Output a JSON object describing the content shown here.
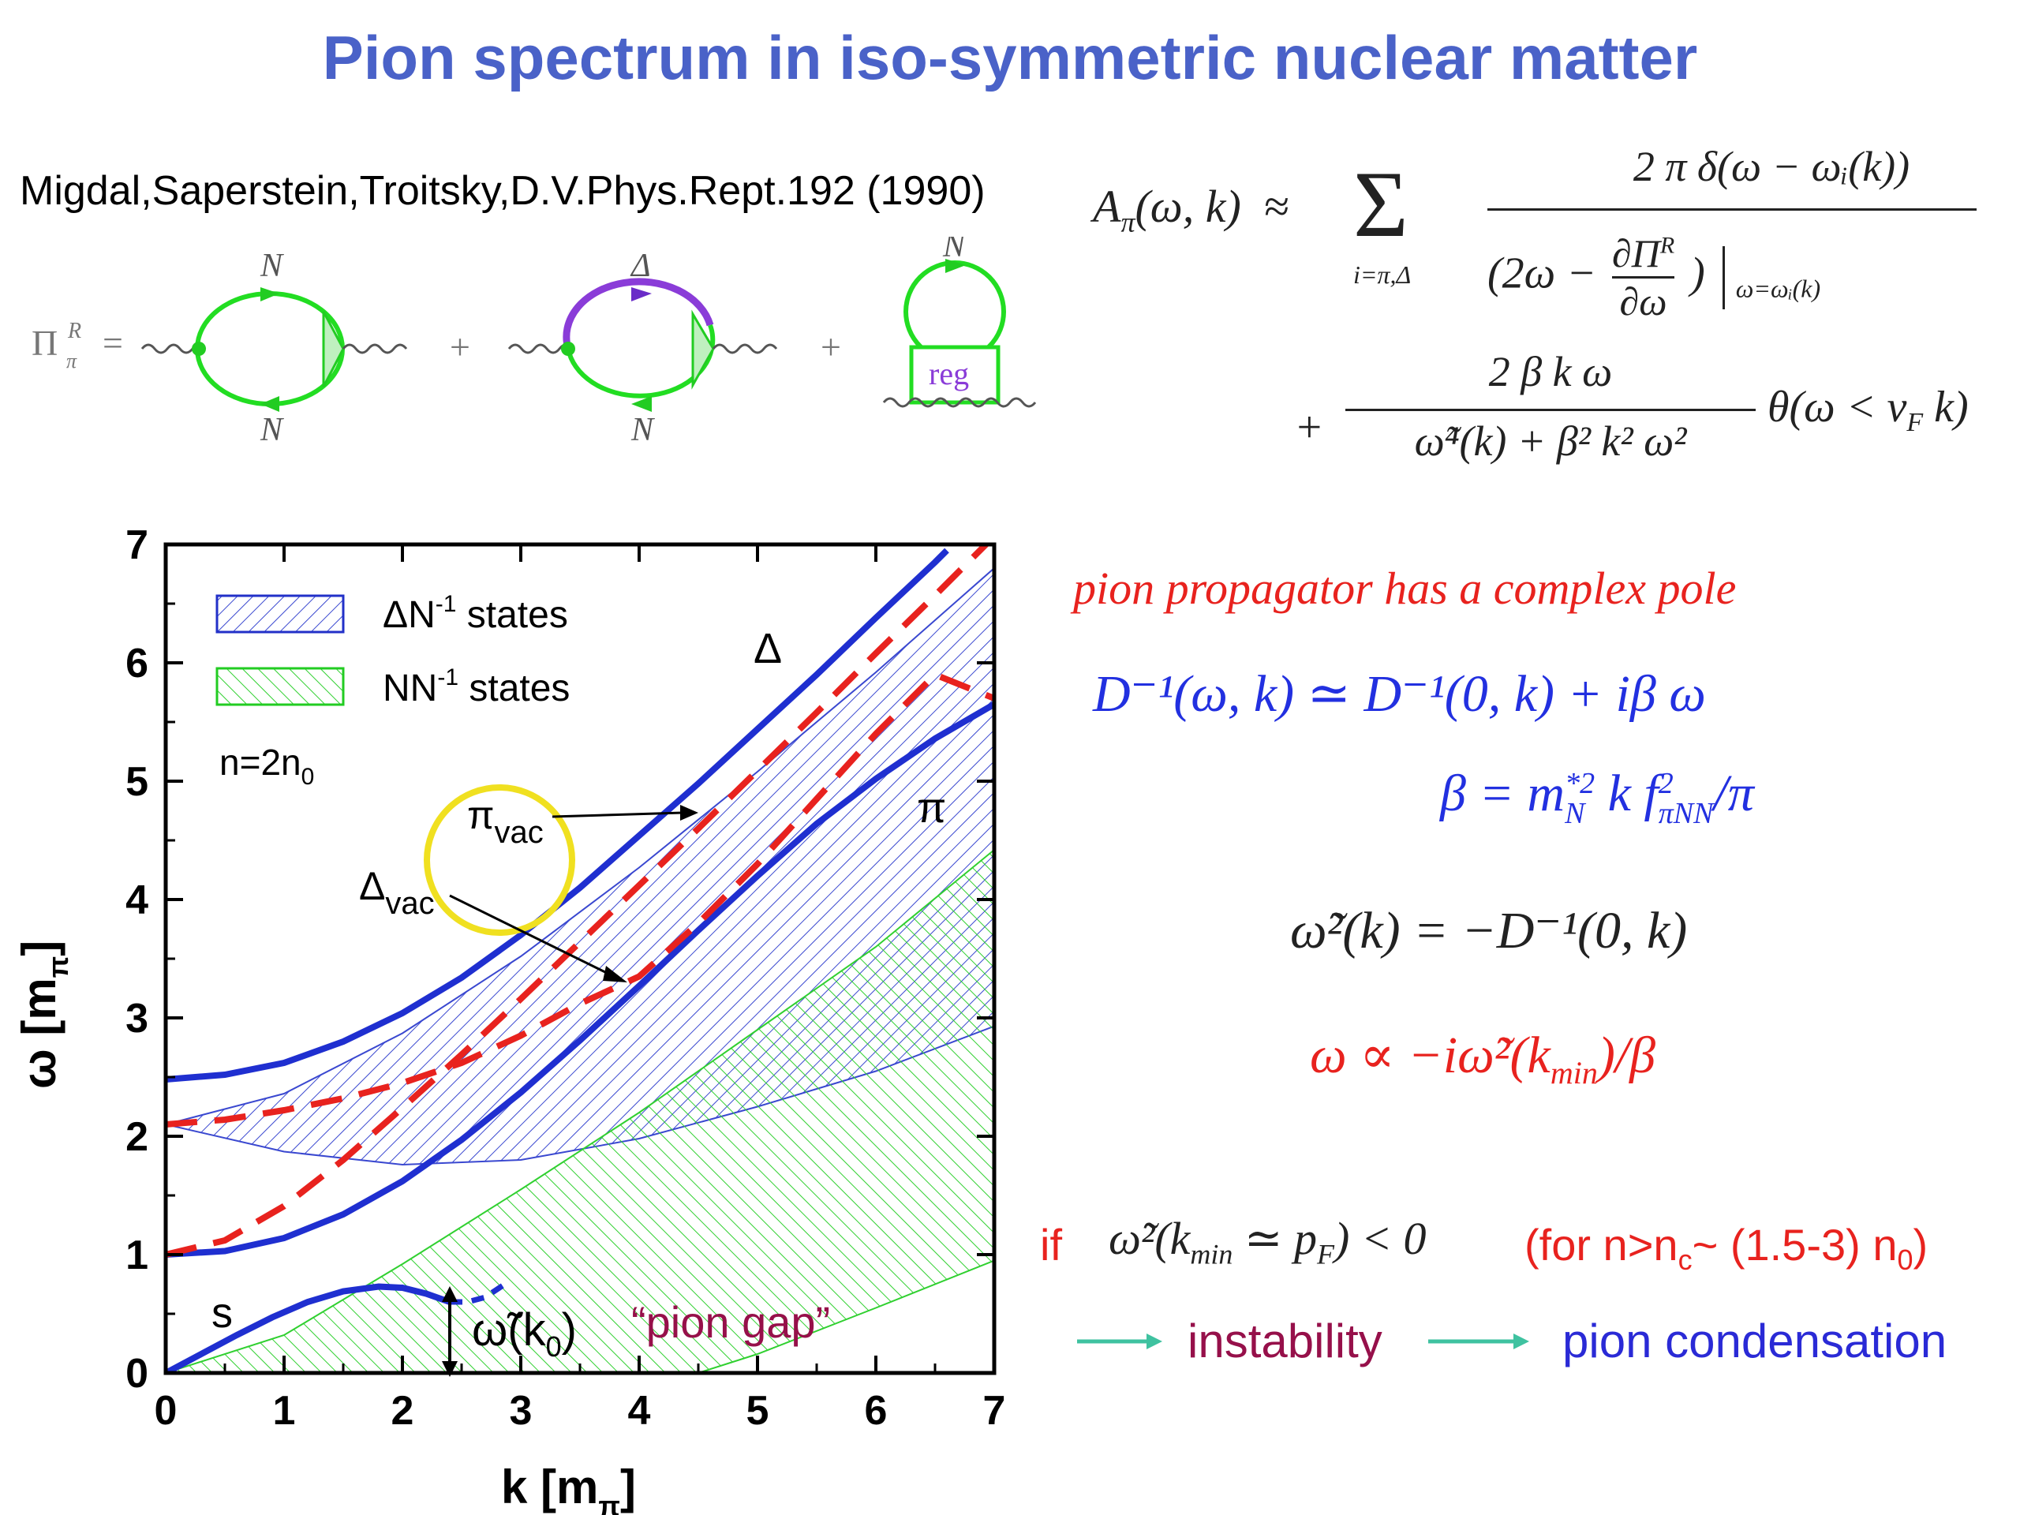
{
  "slide": {
    "title": "Pion spectrum in iso-symmetric nuclear matter",
    "reference": "Migdal,Saperstein,Troitsky,D.V.Phys.Rept.192 (1990)"
  },
  "diagram": {
    "lhs": "Π",
    "lhs_sup": "R",
    "lhs_sub": "π",
    "equals": "=",
    "plus": "+",
    "loop1_top": "N",
    "loop1_bottom": "N",
    "loop2_top": "Δ",
    "loop2_bottom": "N",
    "loop3_top": "N",
    "loop3_box": "reg"
  },
  "spectral": {
    "lhs": "A",
    "lhs_sub": "π",
    "lhs_args": "(ω, k)",
    "approx": "≈",
    "sum_sign": "Σ",
    "sum_index": "i=π,Δ",
    "num1": "2 π δ(ω − ωᵢ(k))",
    "den1_left": "(2ω −",
    "den1_frac_num": "∂Π",
    "den1_frac_num_sup": "R",
    "den1_frac_den": "∂ω",
    "den1_right": ")",
    "den1_eval": "ω=ωᵢ(k)",
    "plus": "+",
    "num2": "2 β k ω",
    "den2": "ω̃⁴(k) + β² k² ω²",
    "theta": "θ(ω < v",
    "theta_sub": "F",
    "theta_tail": " k)"
  },
  "right_text": {
    "complex_pole": "pion propagator has a complex pole",
    "eq_D": "D⁻¹(ω, k) ≃ D⁻¹(0, k) + iβ ω",
    "eq_beta_lhs": "β = m",
    "eq_beta_sup": "*2",
    "eq_beta_sub": "N",
    "eq_beta_mid": " k f",
    "eq_beta_sup2": "2",
    "eq_beta_sub2": "πNN",
    "eq_beta_tail": "/π",
    "eq_omega_tilde": "ω̃²(k) = −D⁻¹(0, k)",
    "eq_omega_prop": "ω ∝ −iω̃²(k",
    "eq_omega_prop_sub": "min",
    "eq_omega_prop_tail": ")/β",
    "if_word": "if",
    "if_cond": "ω̃²(k",
    "if_cond_sub": "min",
    "if_cond_mid": " ≃ p",
    "if_cond_sub2": "F",
    "if_cond_tail": ") < 0",
    "for_cond": "(for n>n",
    "for_cond_sub": "c",
    "for_cond_mid": "~ (1.5-3) n",
    "for_cond_sub2": "0",
    "for_cond_tail": ")",
    "instability": "instability",
    "condensation": "pion condensation",
    "arrow_color": "#3fc2a0"
  },
  "chart_data": {
    "type": "line",
    "xlabel": "k [m",
    "xlabel_sub": "π",
    "xlabel_tail": "]",
    "ylabel": "ω [m",
    "ylabel_sub": "π",
    "ylabel_tail": "]",
    "xlim": [
      0,
      7
    ],
    "ylim": [
      0,
      7
    ],
    "xticks": [
      "0",
      "1",
      "2",
      "3",
      "4",
      "5",
      "6",
      "7"
    ],
    "yticks": [
      "0",
      "1",
      "2",
      "3",
      "4",
      "5",
      "6",
      "7"
    ],
    "legend": [
      {
        "label": "ΔN",
        "sup": "-1",
        "tail": " states",
        "color": "#2230c8",
        "pattern": "hatch"
      },
      {
        "label": "NN",
        "sup": "-1",
        "tail": " states",
        "color": "#22cc22",
        "pattern": "hatch"
      }
    ],
    "density_label": "n=2n",
    "density_sub": "0",
    "colors": {
      "branch": "#1f2fd0",
      "vacuum": "#e8221e",
      "nn": "#30d030",
      "dn": "#3a48d0",
      "circle": "#f0e020"
    },
    "series": [
      {
        "name": "Δ",
        "style": "solid",
        "x": [
          0,
          0.5,
          1,
          1.5,
          2,
          2.5,
          3,
          3.5,
          4,
          4.5,
          5,
          5.5,
          6,
          6.5,
          6.6
        ],
        "y": [
          2.48,
          2.52,
          2.62,
          2.8,
          3.04,
          3.34,
          3.7,
          4.1,
          4.54,
          4.98,
          5.44,
          5.9,
          6.38,
          6.85,
          6.95
        ]
      },
      {
        "name": "π",
        "style": "solid",
        "x": [
          0,
          0.5,
          1,
          1.5,
          2,
          2.5,
          3,
          3.5,
          4,
          4.5,
          5,
          5.5,
          6,
          6.5,
          7
        ],
        "y": [
          1.0,
          1.03,
          1.14,
          1.34,
          1.62,
          1.97,
          2.37,
          2.81,
          3.27,
          3.74,
          4.2,
          4.64,
          5.02,
          5.36,
          5.65
        ]
      },
      {
        "name": "s",
        "style": "solid",
        "x": [
          0,
          0.3,
          0.6,
          0.9,
          1.2,
          1.5,
          1.8,
          2.0,
          2.2,
          2.4
        ],
        "y": [
          0.0,
          0.16,
          0.32,
          0.47,
          0.6,
          0.69,
          0.73,
          0.72,
          0.67,
          0.6
        ]
      },
      {
        "name": "ω̃(k0) dotted",
        "style": "dotted",
        "x": [
          2.4,
          2.55,
          2.7,
          2.85
        ],
        "y": [
          0.6,
          0.6,
          0.64,
          0.74
        ]
      },
      {
        "name": "π_vac",
        "style": "dashed",
        "x": [
          0,
          0.5,
          1,
          1.5,
          2,
          2.5,
          3,
          3.5,
          4,
          4.5,
          5,
          5.5,
          6,
          6.5,
          7
        ],
        "y": [
          1.0,
          1.12,
          1.41,
          1.8,
          2.24,
          2.69,
          3.16,
          3.64,
          4.12,
          4.6,
          5.09,
          5.58,
          6.08,
          6.57,
          7.07
        ]
      },
      {
        "name": "Δ_vac",
        "style": "dashed",
        "x": [
          0,
          0.5,
          1,
          1.5,
          2,
          2.5,
          3,
          3.5,
          4,
          4.5,
          5,
          5.5,
          6,
          6.5,
          7
        ],
        "y": [
          2.1,
          2.14,
          2.22,
          2.32,
          2.45,
          2.62,
          2.85,
          3.12,
          3.35,
          3.8,
          4.3,
          4.85,
          5.4,
          5.9,
          5.7
        ]
      }
    ],
    "bands": [
      {
        "name": "ΔN⁻¹ band upper",
        "x": [
          0,
          1,
          2,
          3,
          4,
          5,
          6,
          7
        ],
        "y": [
          2.1,
          2.36,
          2.87,
          3.52,
          4.27,
          5.08,
          5.92,
          6.8
        ]
      },
      {
        "name": "ΔN⁻¹ band lower",
        "x": [
          0,
          1,
          2,
          3,
          4,
          5,
          6,
          7
        ],
        "y": [
          2.1,
          1.87,
          1.76,
          1.8,
          1.98,
          2.25,
          2.55,
          2.93
        ]
      },
      {
        "name": "NN⁻¹ band upper",
        "x": [
          0,
          1,
          2,
          3,
          4,
          5,
          6,
          7
        ],
        "y": [
          0,
          0.32,
          0.92,
          1.55,
          2.2,
          2.9,
          3.6,
          4.42
        ]
      },
      {
        "name": "NN⁻¹ band lower",
        "x": [
          0,
          1,
          2,
          3,
          4,
          4.5,
          5,
          6,
          7
        ],
        "y": [
          0,
          0,
          0,
          0,
          0,
          0,
          0.16,
          0.55,
          0.95
        ]
      }
    ],
    "annotations": [
      {
        "text": "Δ",
        "x": 5.1,
        "y": 6.0,
        "color": "#000"
      },
      {
        "text": "π",
        "x": 6.4,
        "y": 4.7,
        "color": "#000"
      },
      {
        "text": "s",
        "x": 0.4,
        "y": 0.38,
        "color": "#000"
      },
      {
        "text": "π",
        "sub": "vac",
        "x": 2.6,
        "y": 4.6,
        "color": "#000"
      },
      {
        "text": "Δ",
        "sub": "vac",
        "x": 1.65,
        "y": 3.7,
        "color": "#000"
      },
      {
        "text": "ω̃(k",
        "sub": "0",
        "tail": ")",
        "x": 2.6,
        "y": 0.3,
        "color": "#000"
      },
      {
        "text": "“pion gap”",
        "x": 3.9,
        "y": 0.35,
        "color": "#96104a"
      }
    ]
  }
}
